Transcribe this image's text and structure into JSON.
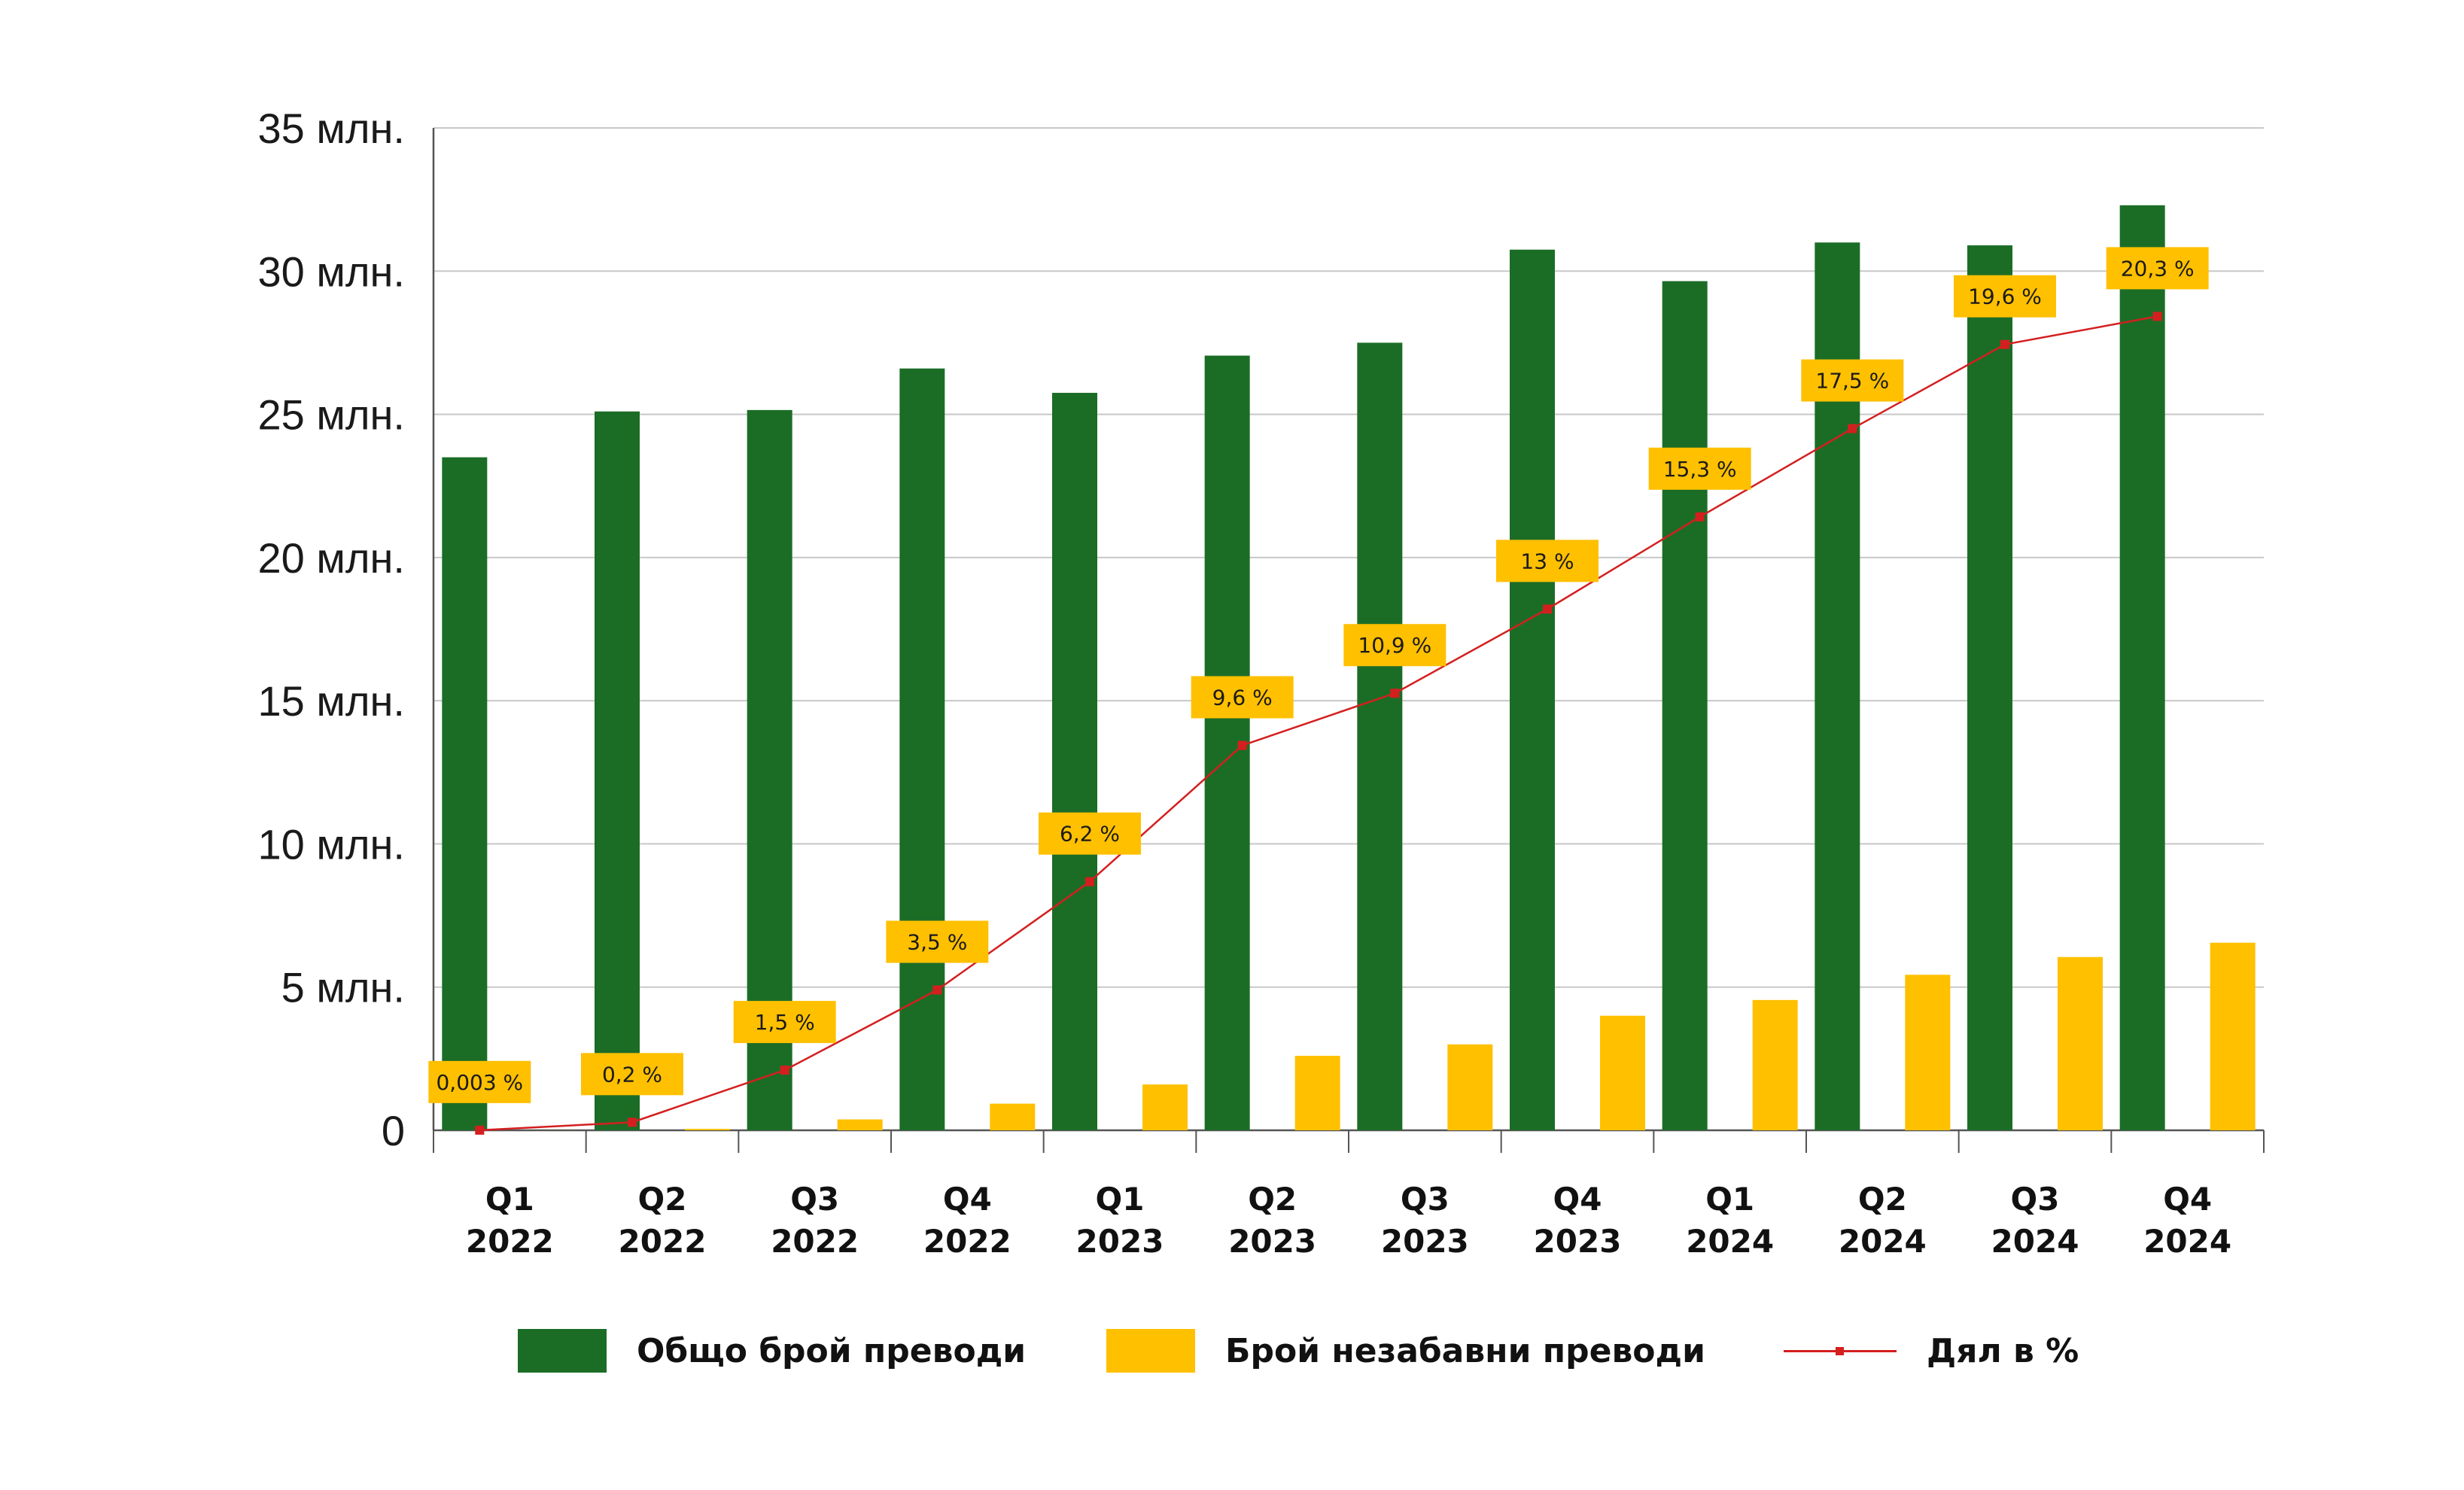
{
  "colors": {
    "total": "#1b6d26",
    "instant": "#ffc000",
    "share_line": "#d41f1f",
    "grid": "#c8c8c8",
    "axis": "#555555"
  },
  "chart_data": {
    "type": "bar",
    "categories": [
      [
        "Q1",
        "2022"
      ],
      [
        "Q2",
        "2022"
      ],
      [
        "Q3",
        "2022"
      ],
      [
        "Q4",
        "2022"
      ],
      [
        "Q1",
        "2023"
      ],
      [
        "Q2",
        "2023"
      ],
      [
        "Q3",
        "2023"
      ],
      [
        "Q4",
        "2023"
      ],
      [
        "Q1",
        "2024"
      ],
      [
        "Q2",
        "2024"
      ],
      [
        "Q3",
        "2024"
      ],
      [
        "Q4",
        "2024"
      ]
    ],
    "ylim": [
      0,
      35000000
    ],
    "yticks": [
      0,
      5000000,
      10000000,
      15000000,
      20000000,
      25000000,
      30000000,
      35000000
    ],
    "ytick_labels": [
      "0",
      "5 млн.",
      "10 млн.",
      "15 млн.",
      "20 млн.",
      "25 млн.",
      "30 млн.",
      "35 млн."
    ],
    "grid": true,
    "legend_position": "bottom",
    "series": [
      {
        "name": "Общо брой преводи",
        "type": "bar",
        "color": "#1b6d26",
        "values": [
          23500000,
          25100000,
          25150000,
          26600000,
          25750000,
          27050000,
          27500000,
          30750000,
          29650000,
          31000000,
          30900000,
          32300000
        ]
      },
      {
        "name": "Брой незабавни преводи",
        "type": "bar",
        "color": "#ffc000",
        "values": [
          1000,
          50000,
          380000,
          930000,
          1600000,
          2600000,
          3000000,
          4000000,
          4550000,
          5430000,
          6050000,
          6550000
        ]
      },
      {
        "name": "Дял в %",
        "type": "line",
        "color": "#d41f1f",
        "values": [
          0.003,
          0.2,
          1.5,
          3.5,
          6.2,
          9.6,
          10.9,
          13,
          15.3,
          17.5,
          19.6,
          20.3
        ],
        "labels": [
          "0,003 %",
          "0,2 %",
          "1,5 %",
          "3,5 %",
          "6,2 %",
          "9,6 %",
          "10,9 %",
          "13 %",
          "15,3 %",
          "17,5 %",
          "19,6 %",
          "20,3 %"
        ]
      }
    ]
  }
}
